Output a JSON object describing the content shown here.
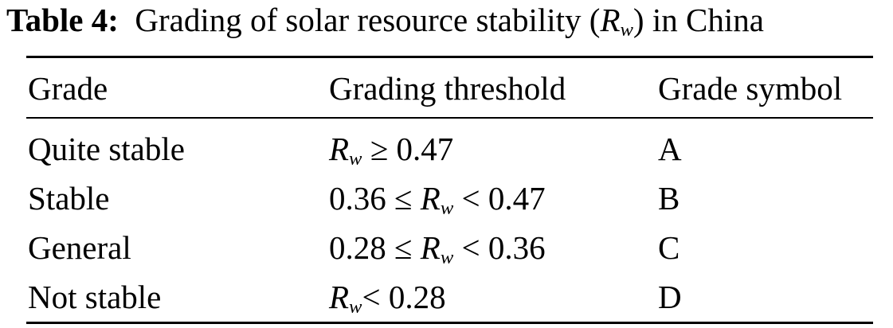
{
  "caption": {
    "label": "Table 4:",
    "text_before": "Grading of solar resource stability (",
    "var": "R",
    "var_sub": "w",
    "text_after": ") in China"
  },
  "table": {
    "headers": [
      "Grade",
      "Grading threshold",
      "Grade symbol"
    ],
    "var": "R",
    "var_sub": "w",
    "rows": [
      {
        "grade": "Quite stable",
        "threshold_left": "",
        "threshold_right": " ≥ 0.47",
        "symbol": "A"
      },
      {
        "grade": "Stable",
        "threshold_left": "0.36 ≤ ",
        "threshold_right": " < 0.47",
        "symbol": "B"
      },
      {
        "grade": "General",
        "threshold_left": "0.28 ≤ ",
        "threshold_right": " < 0.36",
        "symbol": "C"
      },
      {
        "grade": "Not stable",
        "threshold_left": "",
        "threshold_right": "< 0.28",
        "symbol": "D"
      }
    ]
  }
}
